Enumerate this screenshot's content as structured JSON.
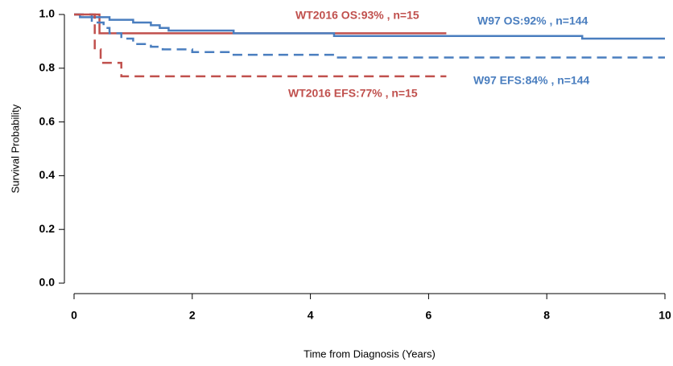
{
  "chart_data": {
    "type": "step-line",
    "xlabel": "Time from Diagnosis (Years)",
    "ylabel": "Survival Probability",
    "xlim": [
      0,
      10
    ],
    "ylim": [
      0,
      1
    ],
    "xticks": [
      0,
      2,
      4,
      6,
      8,
      10
    ],
    "yticks": [
      {
        "value": 0,
        "label": "0.0"
      },
      {
        "value": 0.2,
        "label": "0.2"
      },
      {
        "value": 0.4,
        "label": "0.4"
      },
      {
        "value": 0.6,
        "label": "0.6"
      },
      {
        "value": 0.8,
        "label": "0.8"
      },
      {
        "value": 1,
        "label": "1.0"
      }
    ],
    "series": [
      {
        "name": "WT2016 OS:93% , n=15",
        "color": "#c0504d",
        "dashed": false,
        "x": [
          0,
          0.43,
          0.43,
          6.3
        ],
        "y": [
          1,
          1,
          0.93,
          0.93
        ]
      },
      {
        "name": "W97 OS:92% , n=144",
        "color": "#4a7ebf",
        "dashed": false,
        "x": [
          0,
          0.1,
          0.1,
          0.6,
          0.6,
          1.0,
          1.0,
          1.3,
          1.3,
          1.45,
          1.45,
          1.6,
          1.6,
          2.7,
          2.7,
          4.4,
          4.4,
          8.6,
          8.6,
          10
        ],
        "y": [
          1,
          1,
          0.99,
          0.99,
          0.98,
          0.98,
          0.97,
          0.97,
          0.96,
          0.96,
          0.95,
          0.95,
          0.94,
          0.94,
          0.93,
          0.93,
          0.92,
          0.92,
          0.91,
          0.91
        ]
      },
      {
        "name": "W97 EFS:84% , n=144",
        "color": "#4a7ebf",
        "dashed": true,
        "x": [
          0,
          0.3,
          0.3,
          0.5,
          0.5,
          0.6,
          0.6,
          0.8,
          0.8,
          1.0,
          1.0,
          1.3,
          1.3,
          1.5,
          1.5,
          2.0,
          2.0,
          2.7,
          2.7,
          4.4,
          4.4,
          10
        ],
        "y": [
          1,
          1,
          0.97,
          0.97,
          0.95,
          0.95,
          0.93,
          0.93,
          0.91,
          0.91,
          0.89,
          0.89,
          0.88,
          0.88,
          0.87,
          0.87,
          0.86,
          0.86,
          0.85,
          0.85,
          0.84,
          0.84
        ]
      },
      {
        "name": "WT2016 EFS:77% , n=15",
        "color": "#c0504d",
        "dashed": true,
        "x": [
          0,
          0.35,
          0.35,
          0.45,
          0.45,
          0.8,
          0.8,
          6.3
        ],
        "y": [
          1,
          1,
          0.87,
          0.87,
          0.82,
          0.82,
          0.77,
          0.77
        ]
      }
    ]
  }
}
